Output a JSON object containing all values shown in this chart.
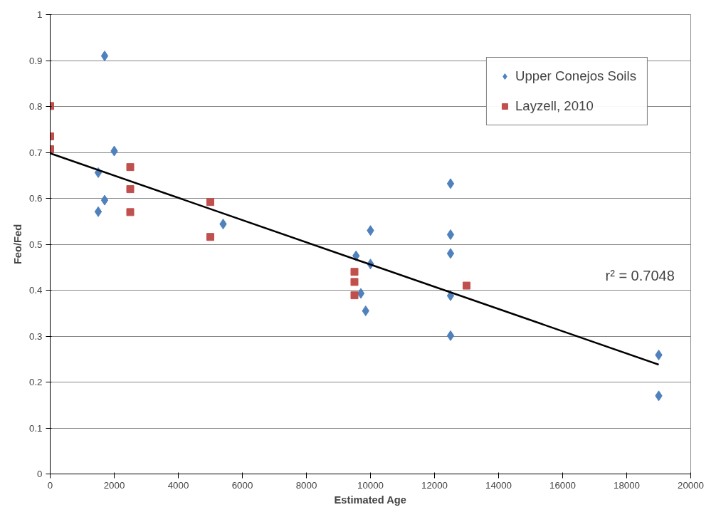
{
  "chart_data": {
    "type": "scatter",
    "xlabel": "Estimated Age",
    "ylabel": "Feo/Fed",
    "xlim": [
      0,
      20000
    ],
    "ylim": [
      0,
      1
    ],
    "xticks": [
      0,
      2000,
      4000,
      6000,
      8000,
      10000,
      12000,
      14000,
      16000,
      18000,
      20000
    ],
    "yticks": [
      0,
      0.1,
      0.2,
      0.3,
      0.4,
      0.5,
      0.6,
      0.7,
      0.8,
      0.9,
      1
    ],
    "grid": "y",
    "legend": "top right",
    "annotations": [
      "r² = 0.7048"
    ],
    "series": [
      {
        "name": "Upper Conejos Soils",
        "color": "#4f81bd",
        "marker": "diamond",
        "x": [
          1700,
          2000,
          1500,
          1700,
          1500,
          5400,
          9550,
          10000,
          10000,
          9700,
          9850,
          12500,
          12500,
          12500,
          12500,
          12500,
          19000,
          19000
        ],
        "values": [
          0.91,
          0.703,
          0.656,
          0.596,
          0.571,
          0.544,
          0.475,
          0.53,
          0.457,
          0.393,
          0.355,
          0.632,
          0.521,
          0.48,
          0.388,
          0.301,
          0.259,
          0.17
        ]
      },
      {
        "name": "Layzell, 2010",
        "color": "#c0504d",
        "marker": "square",
        "x": [
          0,
          0,
          0,
          2500,
          2500,
          2500,
          5000,
          5000,
          9500,
          9500,
          9500,
          13000
        ],
        "values": [
          0.801,
          0.735,
          0.707,
          0.668,
          0.62,
          0.57,
          0.592,
          0.516,
          0.44,
          0.418,
          0.389,
          0.41
        ]
      },
      {
        "type": "line",
        "color": "#000000",
        "x": [
          0,
          19000
        ],
        "values": [
          0.698,
          0.238
        ]
      }
    ]
  }
}
